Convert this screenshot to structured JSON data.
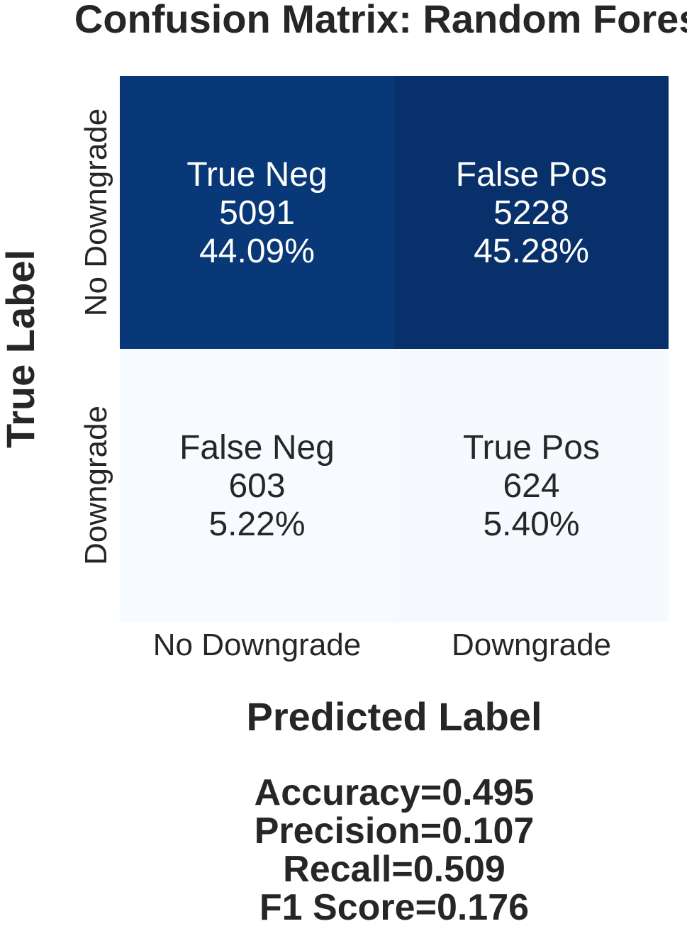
{
  "chart_data": {
    "type": "heatmap",
    "title": "Confusion Matrix: Random Forest",
    "xlabel": "Predicted Label",
    "ylabel": "True Label",
    "x_categories": [
      "No Downgrade",
      "Downgrade"
    ],
    "y_categories": [
      "No Downgrade",
      "Downgrade"
    ],
    "cells": [
      [
        {
          "name": "True Neg",
          "count": "5091",
          "percent": "44.09%",
          "value": 5091
        },
        {
          "name": "False Pos",
          "count": "5228",
          "percent": "45.28%",
          "value": 5228
        }
      ],
      [
        {
          "name": "False Neg",
          "count": "603",
          "percent": "5.22%",
          "value": 603
        },
        {
          "name": "True Pos",
          "count": "624",
          "percent": "5.40%",
          "value": 624
        }
      ]
    ],
    "colormap": "Blues",
    "colorbar": false,
    "metrics": [
      "Accuracy=0.495",
      "Precision=0.107",
      "Recall=0.509",
      "F1 Score=0.176"
    ]
  }
}
